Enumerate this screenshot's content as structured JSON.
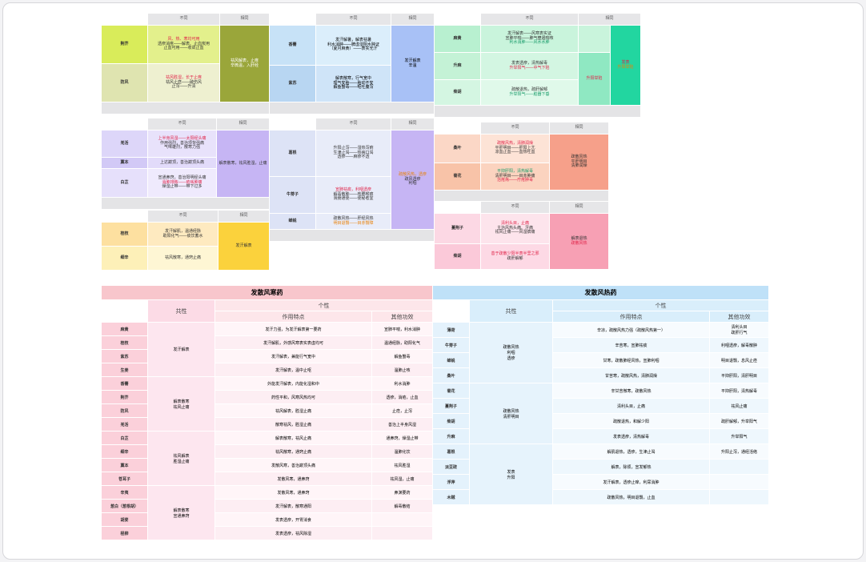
{
  "colors": {
    "lime": "#d9ec5a",
    "olive": "#9aa63a",
    "sky": "#c7e2f7",
    "periwinkle": "#a8c1f6",
    "mint": "#b8f0d0",
    "teal": "#22d6a0",
    "lavender": "#ddd6f9",
    "violet": "#c6b5f4",
    "peach": "#fbd7c6",
    "coral": "#f6a08a",
    "wheat": "#fde0a0",
    "gold": "#fbd23c",
    "pink": "#fcd8e4",
    "rose": "#f7a0b4",
    "lightblue": "#d9eefb"
  },
  "table1": {
    "header": [
      "",
      "不同",
      "相同"
    ],
    "rows": [
      {
        "name": "荆芥",
        "cells": [
          "风、热、寒均可用",
          "透疹消疮——解表、止血炭用",
          "止血可用——收敛止血"
        ]
      },
      {
        "name": "防风",
        "cells": [
          "祛风胜湿，长于止痒",
          "祛风止痉——破伤风",
          "止泻——升清"
        ]
      },
      {
        "common": "祛风解表，止痒"
      },
      {
        "common2": "辛微温，入肝经"
      }
    ]
  },
  "table2": {
    "header": [
      "",
      "不同",
      "相同"
    ],
    "rows": [
      {
        "name": "香薷",
        "cells": [
          "发汗解暑，解表祛暑",
          "利水消肿——脾虚湿阻水肿证",
          "（夏月麻黄）——表实无汗"
        ]
      },
      {
        "name": "紫苏",
        "cells": [
          "解表散寒，行气宽中",
          "理气安胎——胎动不安",
          "解鱼蟹毒——呕吐腹泻"
        ]
      },
      {
        "common": "发汗解表",
        "common2": "辛温"
      }
    ]
  },
  "table3": {
    "header": [
      "",
      "不同",
      "相同"
    ],
    "rows": [
      {
        "name": "麻黄",
        "cells": [
          "发汗解表——风寒表实证",
          "宣肺平喘——肺气壅遏喘咳",
          "利水消肿——风水水肿"
        ]
      },
      {
        "name": "升麻",
        "cells": [
          "发表透疹，清热解毒",
          "升举阳气——中气下陷"
        ]
      },
      {
        "name": "柴胡",
        "cells": [
          "疏散退热，疏肝解郁",
          "升举阳气——脏器下垂"
        ]
      },
      {
        "common": "发表",
        "common2": "升阳举陷"
      }
    ]
  },
  "table4": {
    "header": [
      "",
      "不同",
      "相同"
    ],
    "rows": [
      {
        "name": "羌活",
        "cells": [
          "上半身风湿——太阳经头痛",
          "作用强烈，善治项背强痛",
          "气味雄烈，散寒力强"
        ]
      },
      {
        "name": "藁本",
        "cells": [
          "上达巅顶，善治巅顶头痛"
        ]
      },
      {
        "name": "白芷",
        "cells": [
          "宣通鼻窍，善治阳明经头痛",
          "消肿排脓——疮疡肿痛",
          "燥湿止带——带下过多"
        ]
      },
      {
        "common": "解表散寒，祛风胜湿，止痛"
      }
    ]
  },
  "table5": {
    "header": [
      "",
      "不同",
      "相同"
    ],
    "rows": [
      {
        "name": "葛根",
        "cells": [
          "升阳止泻——湿热泻痢",
          "生津止渴——热病口渴",
          "透疹——麻疹不透"
        ]
      },
      {
        "name": "牛蒡子",
        "cells": [
          "宣肺祛痰，利咽透疹",
          "解毒散肿——痄腮喉痹",
          "滑肠通便——便秘者宜"
        ]
      },
      {
        "name": "蝉蜕",
        "cells": [
          "疏散风热——肝经风热",
          "明目退翳——目赤翳障"
        ]
      },
      {
        "common": "疏散风热，透疹",
        "common2": "疏风透疹",
        "common3": "利咽"
      }
    ]
  },
  "table6": {
    "header": [
      "",
      "不同",
      "相同"
    ],
    "rows": [
      {
        "name": "桑叶",
        "cells": [
          "疏散风热，清肺润燥",
          "平肝明目——肝阳上亢",
          "凉血止血——血热吐血"
        ]
      },
      {
        "name": "菊花",
        "cells": [
          "平抑肝阳，清热解毒",
          "清肝明目——目赤肿痛",
          "治疮疡——疔疮肿毒"
        ]
      },
      {
        "common": "疏散风热",
        "common2": "平肝明目",
        "common3": "清肺润燥"
      }
    ]
  },
  "table7": {
    "header": [
      "",
      "不同",
      "相同"
    ],
    "rows": [
      {
        "name": "蔓荆子",
        "cells": [
          "清利头目，止痛",
          "主治风热头痛、牙痛",
          "祛风止痛——风湿痹痛"
        ]
      },
      {
        "name": "柴胡",
        "cells": [
          "善于疏散少阳半表半里之邪",
          "疏肝解郁"
        ]
      },
      {
        "common": "解表退热",
        "common2": "疏散风热"
      }
    ]
  },
  "table8": {
    "header": [
      "",
      "不同",
      "相同"
    ],
    "rows": [
      {
        "name": "薄荷",
        "cells": [
          "疏散风热，清利头目",
          "利咽透疹——风热咽痛",
          "疏肝行气——肝郁气滞"
        ]
      },
      {
        "name": "牛蒡子",
        "cells": [
          "疏散风热，宣肺祛痰",
          "利咽透疹——咽喉肿痛"
        ]
      },
      {
        "common": "疏散风热",
        "common2": "利咽透疹"
      }
    ]
  },
  "table9": {
    "header": [
      "",
      "不同",
      "相同"
    ],
    "rows": [
      {
        "name": "桂枝",
        "cells": [
          "发汗解肌，温通经脉",
          "助阳化气——痰饮蓄水"
        ]
      },
      {
        "name": "细辛",
        "cells": [
          "祛风散寒，通窍止痛"
        ]
      },
      {
        "common": "发汗解表"
      }
    ]
  },
  "big1": {
    "title": "发散风寒药",
    "col_common": "共性",
    "col_individual": "个性",
    "col_effect": "作用特点",
    "col_other": "其他功效",
    "rows": [
      {
        "name": "麻黄",
        "effect": "发汗力强，为发汗解表第一要药",
        "other": "宣肺平喘，利水消肿"
      },
      {
        "name": "桂枝",
        "effect": "发汗解肌，外感风寒表实表虚均可",
        "other": "温通经脉，助阳化气"
      },
      {
        "name": "紫苏",
        "effect": "发汗解表，兼能行气宽中",
        "other": "解鱼蟹毒"
      },
      {
        "name": "生姜",
        "effect": "发汗解表，温中止呕",
        "other": "温肺止咳"
      },
      {
        "name": "香薷",
        "effect": "外能发汗解表，内能化湿和中",
        "other": "利水消肿"
      },
      {
        "name": "荆芥",
        "effect": "药性平和，风寒风热均可",
        "other": "透疹，消疮，止血"
      },
      {
        "name": "防风",
        "effect": "祛风解表，胜湿止痛",
        "other": "止痉，止泻"
      },
      {
        "name": "羌活",
        "effect": "散寒祛风，胜湿止痛",
        "other": "善治上半身风湿"
      },
      {
        "name": "白芷",
        "effect": "解表散寒，祛风止痛",
        "other": "通鼻窍，燥湿止带"
      },
      {
        "name": "细辛",
        "effect": "祛风散寒，通窍止痛",
        "other": "温肺化饮"
      },
      {
        "name": "藁本",
        "effect": "发散风寒，善治巅顶头痛",
        "other": "祛风胜湿"
      },
      {
        "name": "苍耳子",
        "effect": "发散风寒，通鼻窍",
        "other": "祛风湿，止痛"
      },
      {
        "name": "辛夷",
        "effect": "发散风寒，通鼻窍",
        "other": "鼻渊要药"
      },
      {
        "name": "葱白（葱根胡）",
        "effect": "发汗解表，散寒通阳",
        "other": "解毒散结"
      },
      {
        "name": "胡荽",
        "effect": "发表透疹，开胃消食"
      },
      {
        "name": "柽柳",
        "effect": "发表透疹，祛风除湿"
      }
    ],
    "common_groups": [
      "发汗解表",
      "解表散寒\n祛风止痛",
      "祛风解表\n胜湿止痛",
      "解表散寒\n宣通鼻窍",
      "发散风寒\n通鼻窍"
    ]
  },
  "big2": {
    "title": "发散风热药",
    "col_common": "共性",
    "col_individual": "个性",
    "col_effect": "作用特点",
    "col_other": "其他功效",
    "rows": [
      {
        "name": "薄荷",
        "effect": "辛凉，疏散风热力强（疏散风热第一）",
        "other": "清利头目\n疏肝行气"
      },
      {
        "name": "牛蒡子",
        "effect": "辛苦寒，宣肺祛痰",
        "other": "利咽透疹，解毒散肿"
      },
      {
        "name": "蝉蜕",
        "effect": "甘寒，疏散肺经风热，宣肺利咽",
        "other": "明目退翳，息风止痉"
      },
      {
        "name": "桑叶",
        "effect": "甘苦寒，疏散风热，清肺润燥",
        "other": "平抑肝阳，清肝明目"
      },
      {
        "name": "菊花",
        "effect": "辛甘苦微寒，疏散风热",
        "other": "平抑肝阳，清热解毒"
      },
      {
        "name": "蔓荆子",
        "effect": "清利头目，止痛",
        "other": "祛风止痛"
      },
      {
        "name": "柴胡",
        "effect": "疏散退热，和解少阳",
        "other": "疏肝解郁，升举阳气"
      },
      {
        "name": "升麻",
        "effect": "发表透疹，清热解毒",
        "other": "升举阳气"
      },
      {
        "name": "葛根",
        "effect": "解肌退热，透疹，生津止渴",
        "other": "升阳止泻，通经活络"
      },
      {
        "name": "淡豆豉",
        "effect": "解表，除烦，宣发郁热"
      },
      {
        "name": "浮萍",
        "effect": "发汗解表，透疹止痒，利尿消肿"
      },
      {
        "name": "木贼",
        "effect": "疏散风热，明目退翳，止血"
      }
    ],
    "common_groups": [
      "疏散风热\n利咽\n透疹",
      "疏散风热\n清肝明目",
      "发表\n升阳"
    ]
  }
}
